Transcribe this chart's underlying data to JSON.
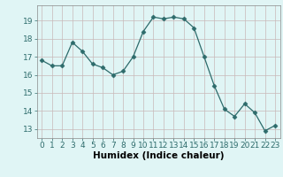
{
  "x": [
    0,
    1,
    2,
    3,
    4,
    5,
    6,
    7,
    8,
    9,
    10,
    11,
    12,
    13,
    14,
    15,
    16,
    17,
    18,
    19,
    20,
    21,
    22,
    23
  ],
  "y": [
    16.8,
    16.5,
    16.5,
    17.8,
    17.3,
    16.6,
    16.4,
    16.0,
    16.2,
    17.0,
    18.4,
    19.2,
    19.1,
    19.2,
    19.1,
    18.6,
    17.0,
    15.4,
    14.1,
    13.7,
    14.4,
    13.9,
    12.9,
    13.2
  ],
  "line_color": "#2d6b6b",
  "marker": "D",
  "marker_size": 2.5,
  "bg_color": "#e0f5f5",
  "grid_color": "#c8b8b8",
  "xlabel": "Humidex (Indice chaleur)",
  "xlim": [
    -0.5,
    23.5
  ],
  "ylim": [
    12.5,
    19.85
  ],
  "yticks": [
    13,
    14,
    15,
    16,
    17,
    18,
    19
  ],
  "xticks": [
    0,
    1,
    2,
    3,
    4,
    5,
    6,
    7,
    8,
    9,
    10,
    11,
    12,
    13,
    14,
    15,
    16,
    17,
    18,
    19,
    20,
    21,
    22,
    23
  ],
  "tick_fontsize": 6.5,
  "xlabel_fontsize": 7.5
}
